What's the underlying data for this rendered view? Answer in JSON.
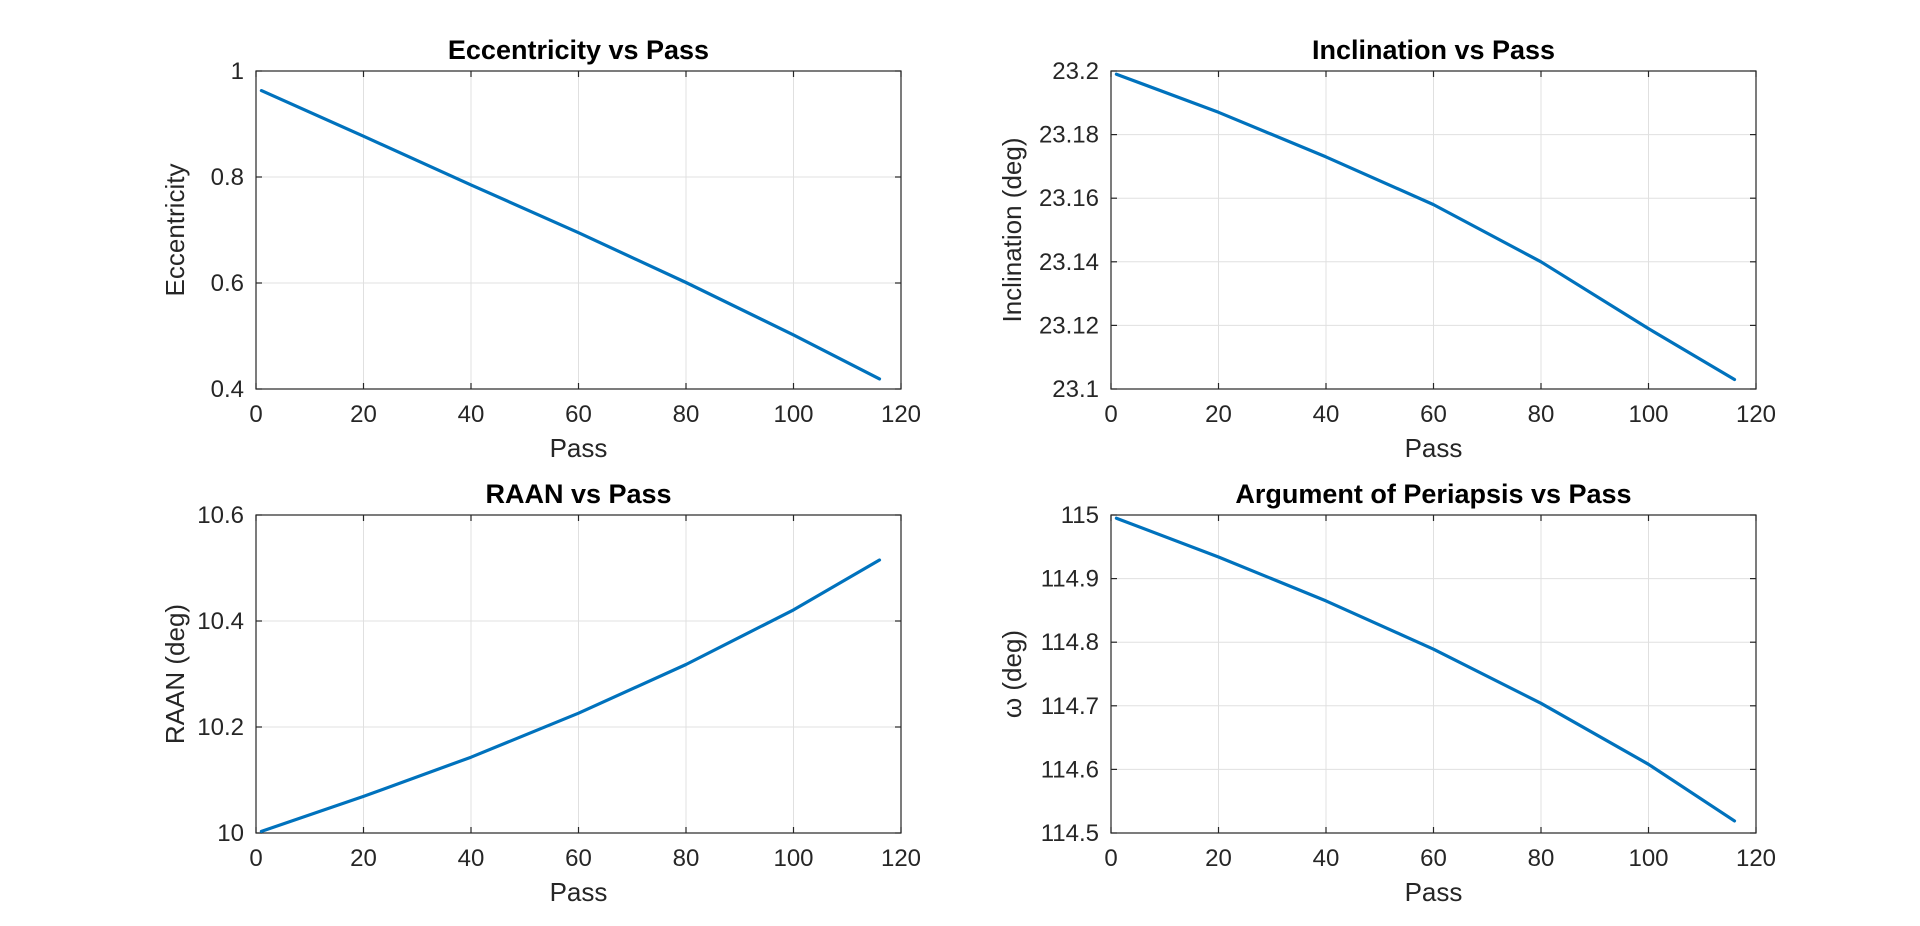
{
  "chart_data": [
    {
      "type": "line",
      "title": "Eccentricity vs Pass",
      "xlabel": "Pass",
      "ylabel": "Eccentricity",
      "xlim": [
        0,
        120
      ],
      "ylim": [
        0.4,
        1
      ],
      "xticks": [
        "0",
        "20",
        "40",
        "60",
        "80",
        "100",
        "120"
      ],
      "yticks": [
        "0.4",
        "0.6",
        "0.8",
        "1"
      ],
      "grid": true,
      "color": "#0072BD",
      "series": [
        {
          "x": [
            1,
            20,
            40,
            60,
            80,
            100,
            116
          ],
          "values": [
            0.963,
            0.877,
            0.785,
            0.695,
            0.601,
            0.502,
            0.419
          ]
        }
      ]
    },
    {
      "type": "line",
      "title": "Inclination vs Pass",
      "xlabel": "Pass",
      "ylabel": "Inclination (deg)",
      "xlim": [
        0,
        120
      ],
      "ylim": [
        23.1,
        23.2
      ],
      "xticks": [
        "0",
        "20",
        "40",
        "60",
        "80",
        "100",
        "120"
      ],
      "yticks": [
        "23.1",
        "23.12",
        "23.14",
        "23.16",
        "23.18",
        "23.2"
      ],
      "grid": true,
      "color": "#0072BD",
      "series": [
        {
          "x": [
            1,
            20,
            40,
            60,
            80,
            100,
            116
          ],
          "values": [
            23.199,
            23.187,
            23.173,
            23.158,
            23.14,
            23.119,
            23.103
          ]
        }
      ]
    },
    {
      "type": "line",
      "title": "RAAN vs Pass",
      "xlabel": "Pass",
      "ylabel": "RAAN (deg)",
      "xlim": [
        0,
        120
      ],
      "ylim": [
        10,
        10.6
      ],
      "xticks": [
        "0",
        "20",
        "40",
        "60",
        "80",
        "100",
        "120"
      ],
      "yticks": [
        "10",
        "10.2",
        "10.4",
        "10.6"
      ],
      "grid": true,
      "color": "#0072BD",
      "series": [
        {
          "x": [
            1,
            20,
            40,
            60,
            80,
            100,
            116
          ],
          "values": [
            10.003,
            10.069,
            10.143,
            10.226,
            10.318,
            10.421,
            10.515
          ]
        }
      ]
    },
    {
      "type": "line",
      "title": "Argument of Periapsis vs Pass",
      "xlabel": "Pass",
      "ylabel": "ω (deg)",
      "xlim": [
        0,
        120
      ],
      "ylim": [
        114.5,
        115
      ],
      "xticks": [
        "0",
        "20",
        "40",
        "60",
        "80",
        "100",
        "120"
      ],
      "yticks": [
        "114.5",
        "114.6",
        "114.7",
        "114.8",
        "114.9",
        "115"
      ],
      "grid": true,
      "color": "#0072BD",
      "series": [
        {
          "x": [
            1,
            20,
            40,
            60,
            80,
            100,
            116
          ],
          "values": [
            114.995,
            114.934,
            114.865,
            114.789,
            114.704,
            114.608,
            114.519
          ]
        }
      ]
    }
  ]
}
